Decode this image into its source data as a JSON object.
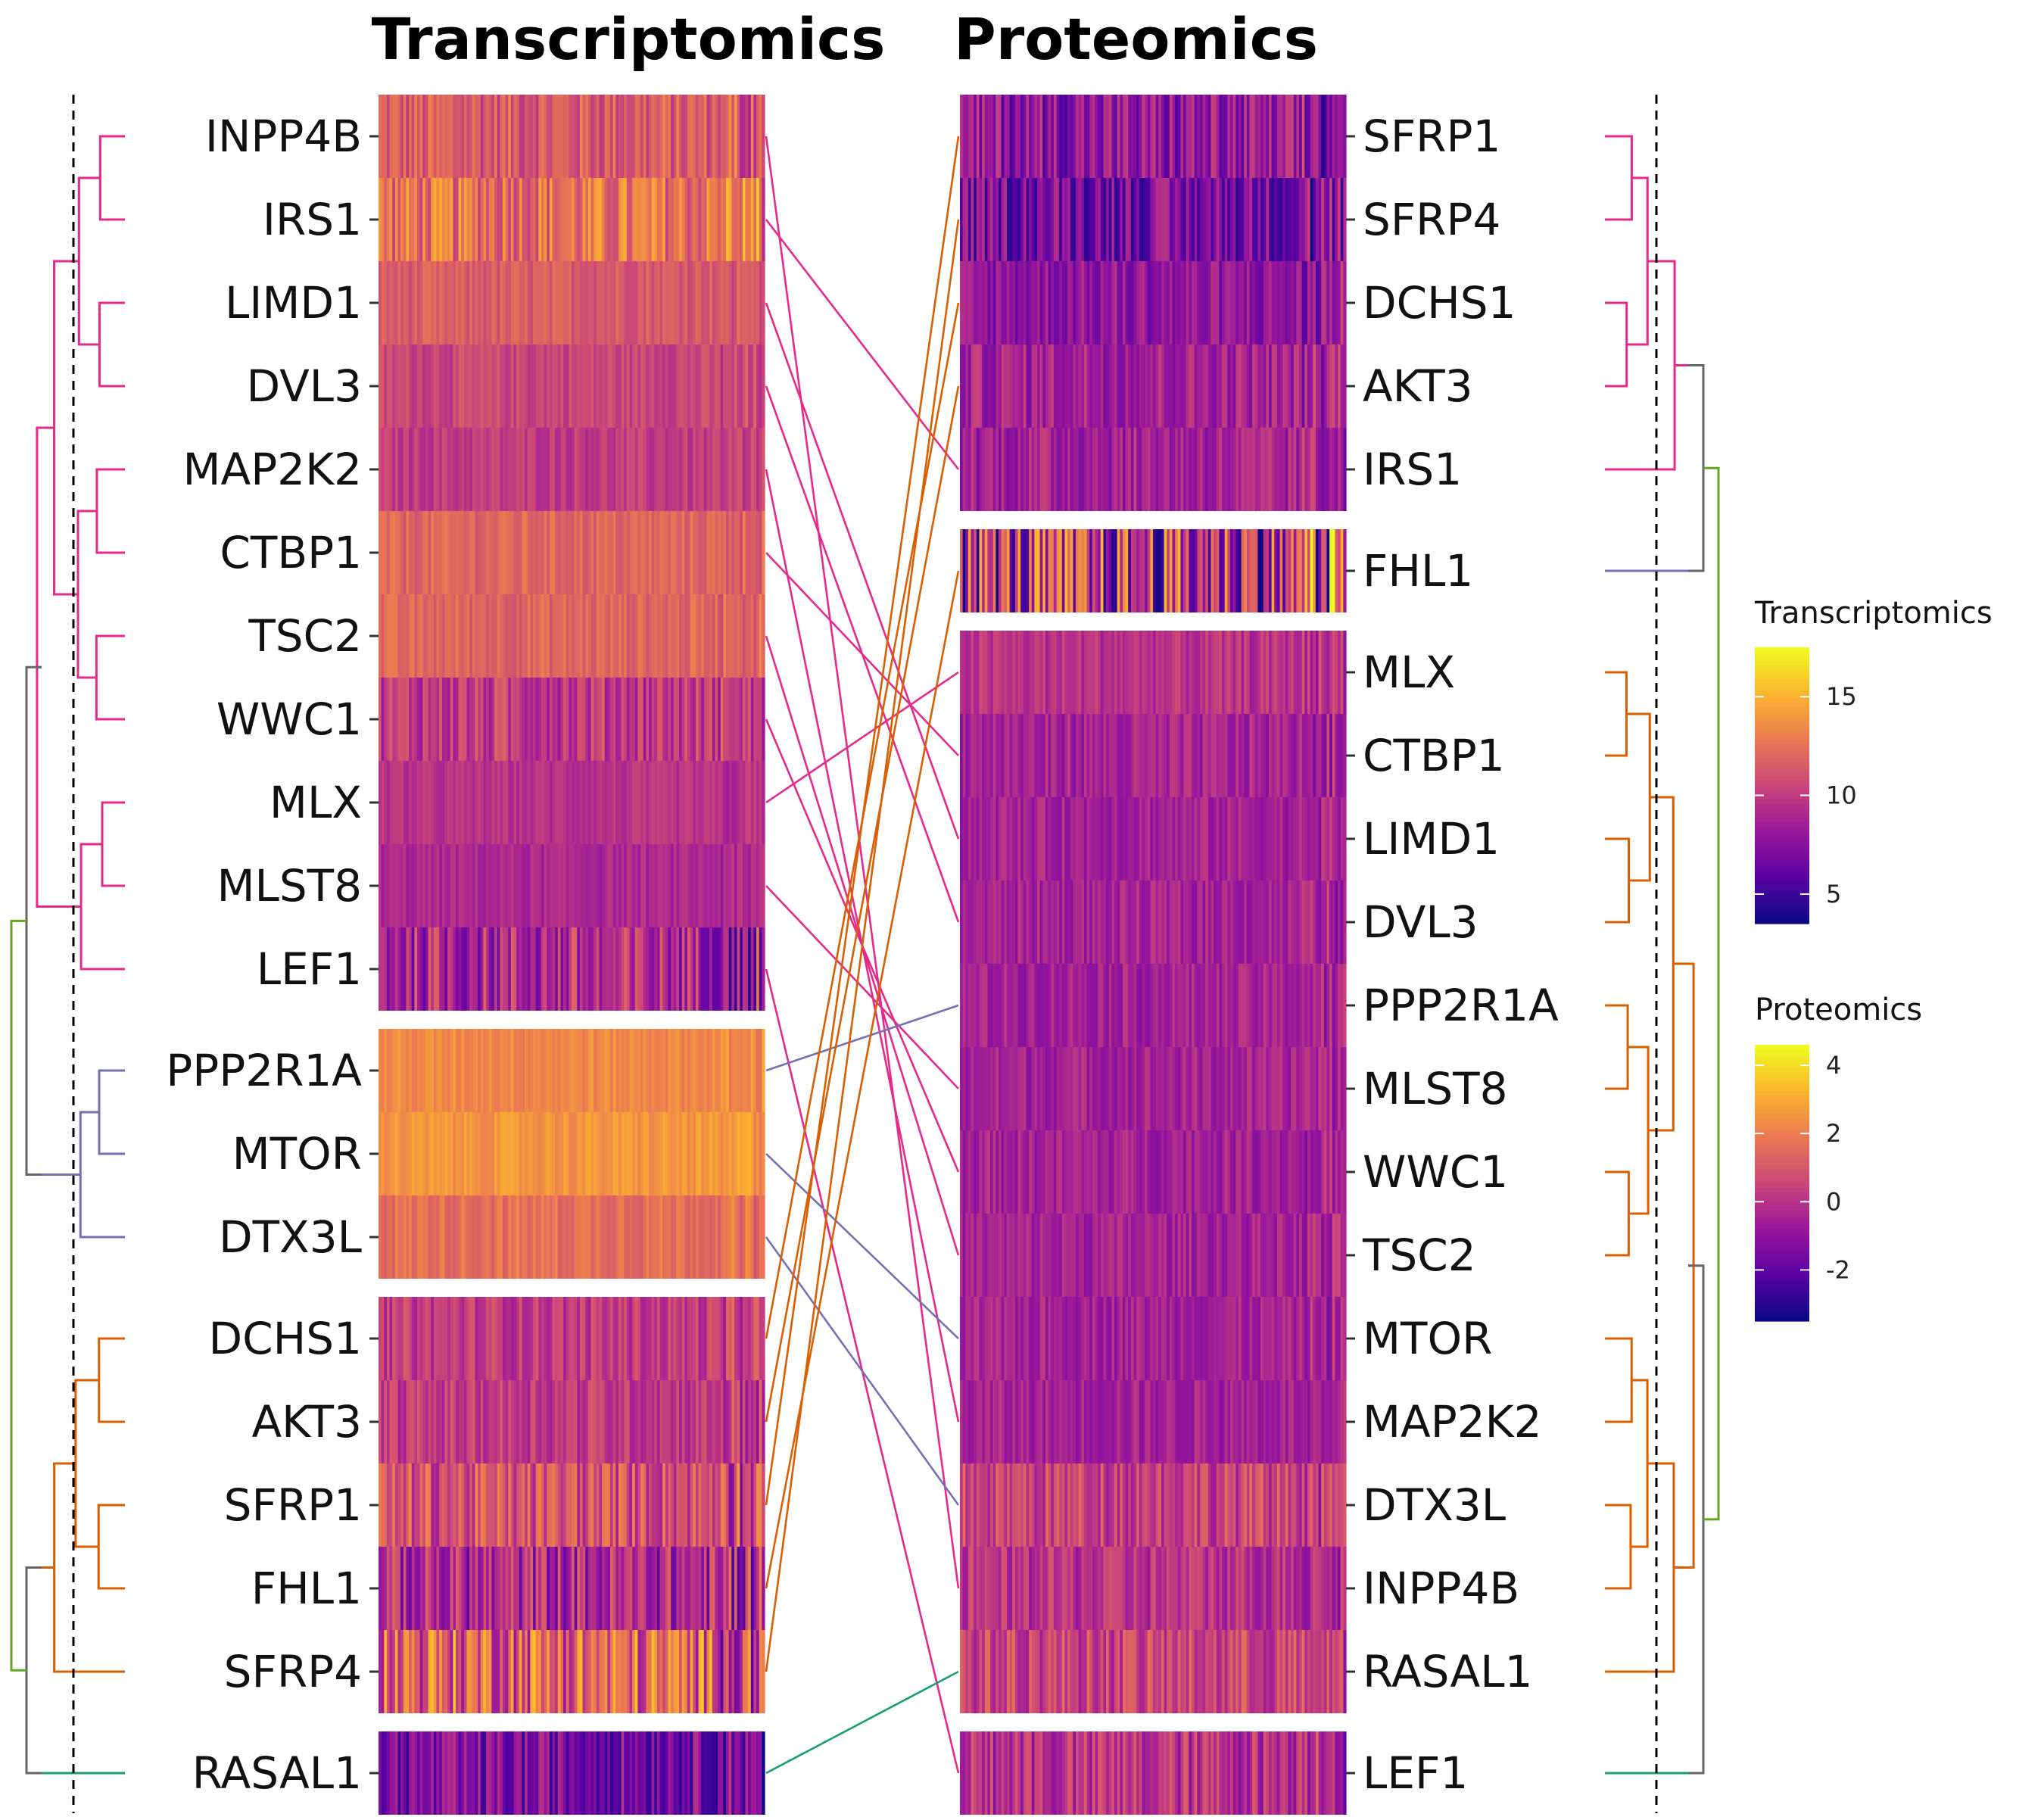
{
  "chart_data": {
    "type": "heatmap",
    "panels": [
      {
        "title": "Transcriptomics",
        "rows": [
          "INPP4B",
          "IRS1",
          "LIMD1",
          "DVL3",
          "MAP2K2",
          "CTBP1",
          "TSC2",
          "WWC1",
          "MLX",
          "MLST8",
          "LEF1",
          "PPP2R1A",
          "MTOR",
          "DTX3L",
          "DCHS1",
          "AKT3",
          "SFRP1",
          "FHL1",
          "SFRP4",
          "RASAL1"
        ],
        "clusters": [
          {
            "color": "#e7298a",
            "rows": [
              "INPP4B",
              "IRS1",
              "LIMD1",
              "DVL3",
              "MAP2K2",
              "CTBP1",
              "TSC2",
              "WWC1",
              "MLX",
              "MLST8",
              "LEF1"
            ]
          },
          {
            "color": "#7570b3",
            "rows": [
              "PPP2R1A",
              "MTOR",
              "DTX3L"
            ]
          },
          {
            "color": "#d95f02",
            "rows": [
              "DCHS1",
              "AKT3",
              "SFRP1",
              "FHL1",
              "SFRP4"
            ]
          },
          {
            "color": "#1b9e77",
            "rows": [
              "RASAL1"
            ]
          }
        ],
        "row_means": [
          11.5,
          12.5,
          11.5,
          10.5,
          10,
          12,
          12,
          10,
          9.5,
          9,
          9,
          13.5,
          14,
          12.5,
          10,
          10,
          11,
          9,
          12,
          7
        ],
        "row_variation": [
          2,
          2.5,
          1,
          1,
          1,
          1,
          1,
          2,
          0.8,
          0.8,
          3,
          0.8,
          0.8,
          1,
          1.5,
          1.5,
          2.5,
          3,
          4,
          2.5
        ]
      },
      {
        "title": "Proteomics",
        "rows": [
          "SFRP1",
          "SFRP4",
          "DCHS1",
          "AKT3",
          "IRS1",
          "FHL1",
          "MLX",
          "CTBP1",
          "LIMD1",
          "DVL3",
          "PPP2R1A",
          "MLST8",
          "WWC1",
          "TSC2",
          "MTOR",
          "MAP2K2",
          "DTX3L",
          "INPP4B",
          "RASAL1",
          "LEF1"
        ],
        "clusters": [
          {
            "color": "#e7298a",
            "rows": [
              "SFRP1",
              "SFRP4",
              "DCHS1",
              "AKT3",
              "IRS1"
            ]
          },
          {
            "color": "#7570b3",
            "rows": [
              "FHL1"
            ]
          },
          {
            "color": "#d95f02",
            "rows": [
              "MLX",
              "CTBP1",
              "LIMD1",
              "DVL3",
              "PPP2R1A",
              "MLST8",
              "WWC1",
              "TSC2",
              "MTOR",
              "MAP2K2",
              "DTX3L",
              "INPP4B",
              "RASAL1"
            ]
          },
          {
            "color": "#1b9e77",
            "rows": [
              "LEF1"
            ]
          }
        ],
        "row_means": [
          -1,
          -1.5,
          -1,
          -0.5,
          -0.5,
          0,
          0,
          -0.5,
          -0.5,
          -0.5,
          -0.5,
          -0.5,
          -0.5,
          -0.5,
          -0.5,
          -0.5,
          0.5,
          0,
          0.5,
          0
        ],
        "row_variation": [
          1.5,
          1.5,
          1,
          1,
          1,
          3.5,
          0.7,
          0.8,
          0.7,
          0.7,
          0.7,
          0.7,
          0.7,
          0.7,
          0.7,
          0.7,
          1.2,
          1,
          1.2,
          1.3
        ]
      }
    ],
    "legends": [
      {
        "title": "Transcriptomics",
        "ticks": [
          "15",
          "10",
          "5"
        ],
        "tick_values": [
          15,
          10,
          5
        ],
        "range": [
          3.5,
          17.5
        ]
      },
      {
        "title": "Proteomics",
        "ticks": [
          "4",
          "2",
          "0",
          "-2"
        ],
        "tick_values": [
          4,
          2,
          0,
          -2
        ],
        "range": [
          -3.5,
          4.6
        ]
      }
    ],
    "colormap": [
      "#0d0887",
      "#5b02a3",
      "#9a179b",
      "#cb4678",
      "#eb7852",
      "#fbb32f",
      "#f0f921"
    ]
  }
}
